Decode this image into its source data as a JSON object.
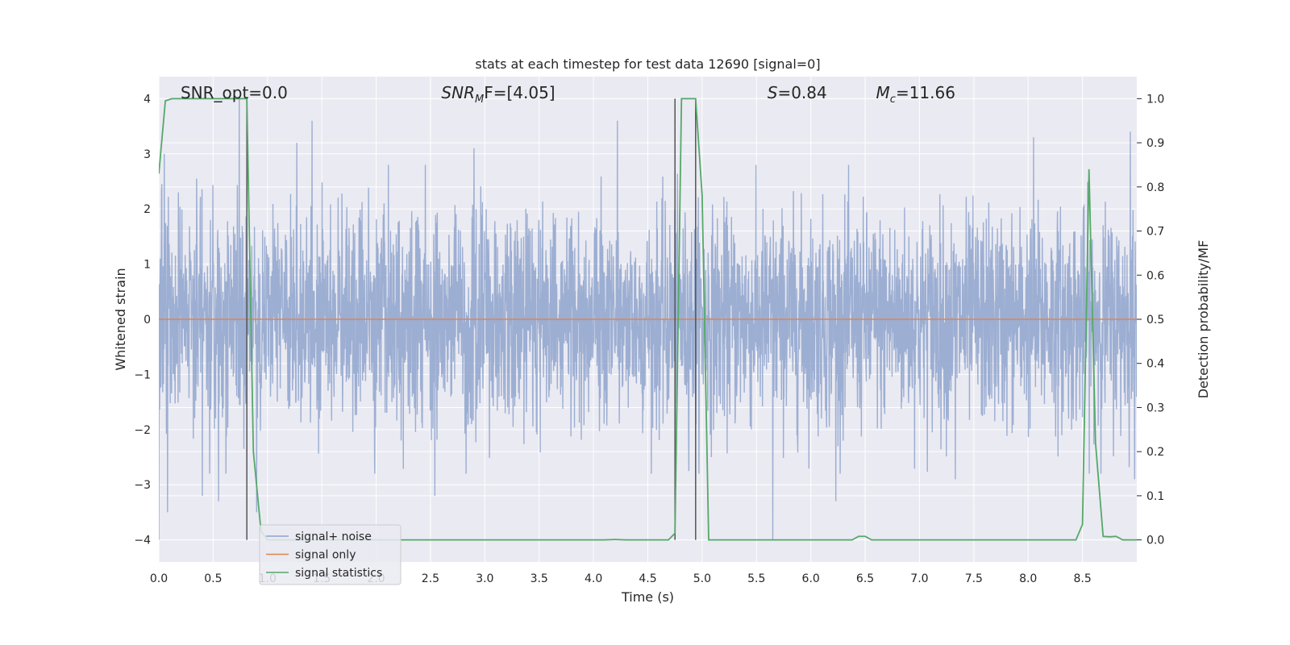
{
  "chart_data": {
    "type": "line",
    "title": "stats at each timestep for test data 12690 [signal=0]",
    "xlabel": "Time (s)",
    "ylabel_left": "Whitened strain",
    "ylabel_right": "Detection probability/MF",
    "xlim": [
      0.0,
      9.0
    ],
    "ylim_left": [
      -4.4,
      4.4
    ],
    "ylim_right": [
      -0.05,
      1.05
    ],
    "x_ticks": [
      "0.0",
      "0.5",
      "1.0",
      "1.5",
      "2.0",
      "2.5",
      "3.0",
      "3.5",
      "4.0",
      "4.5",
      "5.0",
      "5.5",
      "6.0",
      "6.5",
      "7.0",
      "7.5",
      "8.0",
      "8.5"
    ],
    "x_tick_values": [
      0.0,
      0.5,
      1.0,
      1.5,
      2.0,
      2.5,
      3.0,
      3.5,
      4.0,
      4.5,
      5.0,
      5.5,
      6.0,
      6.5,
      7.0,
      7.5,
      8.0,
      8.5
    ],
    "y_left_ticks": [
      "−4",
      "−3",
      "−2",
      "−1",
      "0",
      "1",
      "2",
      "3",
      "4"
    ],
    "y_left_tick_values": [
      -4,
      -3,
      -2,
      -1,
      0,
      1,
      2,
      3,
      4
    ],
    "y_right_ticks": [
      "0.0",
      "0.1",
      "0.2",
      "0.3",
      "0.4",
      "0.5",
      "0.6",
      "0.7",
      "0.8",
      "0.9",
      "1.0"
    ],
    "y_right_tick_values": [
      0.0,
      0.1,
      0.2,
      0.3,
      0.4,
      0.5,
      0.6,
      0.7,
      0.8,
      0.9,
      1.0
    ],
    "grid": true,
    "legend_position": "lower-left",
    "annotations": {
      "snr_opt": {
        "text": "SNR_opt=0.0",
        "x": 0.2
      },
      "snr_mf": {
        "base": "SNR",
        "sub": "M",
        "rest": "F=[4.05]",
        "x": 2.6
      },
      "s": {
        "base": "S",
        "rest": "=0.84",
        "x": 5.6
      },
      "mc": {
        "base": "M",
        "sub": "c",
        "rest": "=11.66",
        "x": 6.6
      }
    },
    "vertical_markers": [
      {
        "x": 0.81,
        "y0": -4,
        "y1": 4
      },
      {
        "x": 4.75,
        "y0": -4,
        "y1": 4
      },
      {
        "x": 4.94,
        "y0": -4,
        "y1": 4
      }
    ],
    "series": [
      {
        "name": "signal+ noise",
        "color": "#8ea3cc",
        "kind": "noise",
        "sample_rate": 400,
        "typical_band": [
          -1.6,
          1.6
        ],
        "peaks": [
          {
            "x": 0.0,
            "y": -4.0
          },
          {
            "x": 0.05,
            "y": 3.0
          },
          {
            "x": 0.08,
            "y": -3.5
          },
          {
            "x": 0.4,
            "y": -3.2
          },
          {
            "x": 0.55,
            "y": -3.3
          },
          {
            "x": 0.74,
            "y": 4.0
          },
          {
            "x": 0.9,
            "y": -3.5
          },
          {
            "x": 1.27,
            "y": 3.2
          },
          {
            "x": 1.41,
            "y": 3.6
          },
          {
            "x": 2.54,
            "y": -3.2
          },
          {
            "x": 2.9,
            "y": 3.1
          },
          {
            "x": 4.22,
            "y": 3.6
          },
          {
            "x": 5.65,
            "y": -4.0
          },
          {
            "x": 6.23,
            "y": -3.3
          },
          {
            "x": 7.33,
            "y": -2.9
          },
          {
            "x": 8.05,
            "y": 3.3
          },
          {
            "x": 8.94,
            "y": 3.4
          },
          {
            "x": 8.98,
            "y": -2.9
          }
        ]
      },
      {
        "name": "signal only",
        "color": "#dd8452",
        "x": [
          0.0,
          9.0
        ],
        "y": [
          0.0,
          0.0
        ]
      },
      {
        "name": "signal statistics",
        "color": "#55a868",
        "axis": "right",
        "x": [
          0.0,
          0.06,
          0.12,
          0.19,
          0.25,
          0.31,
          0.37,
          0.44,
          0.5,
          0.56,
          0.62,
          0.69,
          0.75,
          0.81,
          0.87,
          0.94,
          1.0,
          1.06,
          1.5,
          2.0,
          2.5,
          3.0,
          3.5,
          4.0,
          4.1,
          4.2,
          4.3,
          4.6,
          4.69,
          4.75,
          4.81,
          4.87,
          4.94,
          5.0,
          5.06,
          5.12,
          5.5,
          6.0,
          6.38,
          6.44,
          6.5,
          6.56,
          6.62,
          7.0,
          7.5,
          8.0,
          8.44,
          8.5,
          8.56,
          8.62,
          8.69,
          8.75,
          8.81,
          8.87,
          8.94,
          9.0
        ],
        "y": [
          0.83,
          0.995,
          1.0,
          1.0,
          1.0,
          1.0,
          1.0,
          1.0,
          1.0,
          1.0,
          1.0,
          1.0,
          1.0,
          1.0,
          0.2,
          0.02,
          0.0,
          0.0,
          0.0,
          0.0,
          0.0,
          0.0,
          0.0,
          0.0,
          0.0,
          0.001,
          0.0,
          0.0,
          0.0,
          0.015,
          1.0,
          1.0,
          1.0,
          0.78,
          0.0,
          0.0,
          0.0,
          0.0,
          0.0,
          0.008,
          0.008,
          0.0,
          0.0,
          0.0,
          0.0,
          0.0,
          0.0,
          0.035,
          0.84,
          0.22,
          0.008,
          0.007,
          0.008,
          0.0,
          0.0,
          0.0
        ]
      }
    ]
  }
}
